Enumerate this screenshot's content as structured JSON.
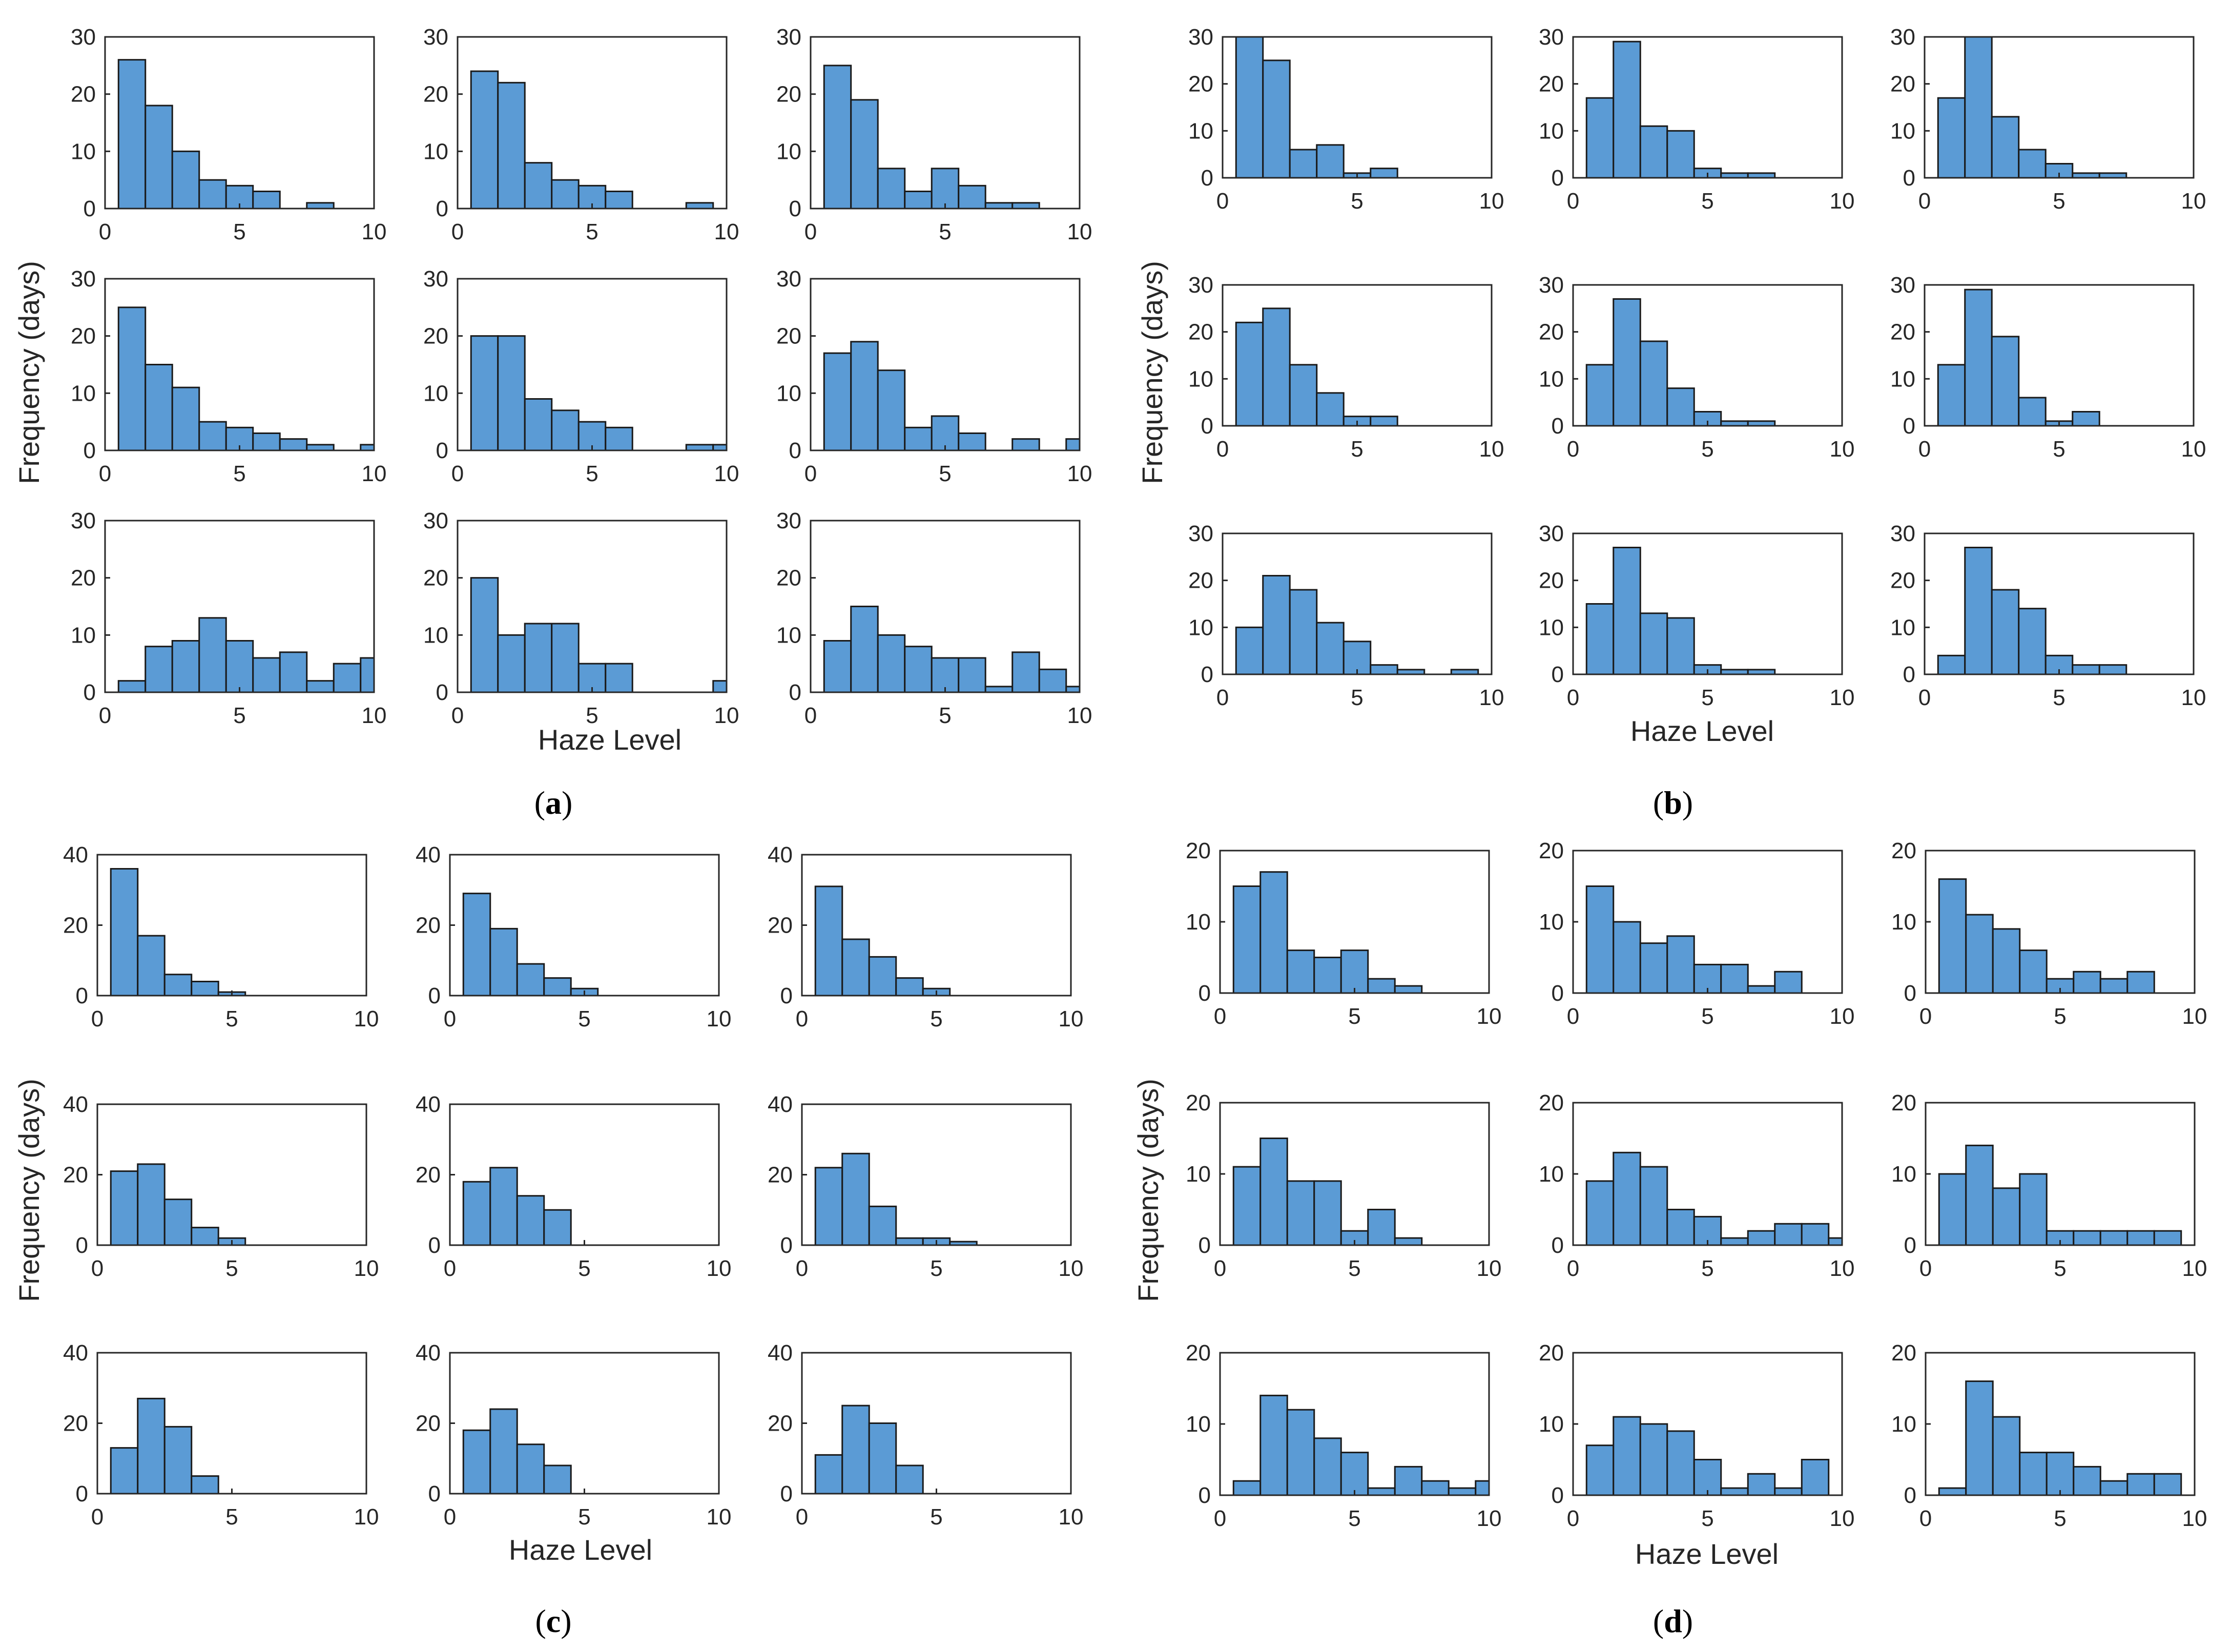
{
  "style": {
    "bar_fill": "#5b9bd5",
    "bar_edge": "#1a1a1a",
    "axis_color": "#262626"
  },
  "chart_data": [
    {
      "panel": "a",
      "caption": "(a)",
      "caption_letter": "a",
      "type": "bar",
      "title": "",
      "xlabel": "Haze Level",
      "ylabel": "Frequency (days)",
      "xlim": [
        0,
        10
      ],
      "ylim": [
        0,
        30
      ],
      "xticks": [
        "0",
        "5",
        "10"
      ],
      "yticks": [
        "0",
        "10",
        "20",
        "30"
      ],
      "bin_width": 1,
      "bin_start": 0.5,
      "subplots": [
        {
          "values": [
            26,
            18,
            10,
            5,
            4,
            3,
            0,
            1,
            0
          ]
        },
        {
          "values": [
            24,
            22,
            8,
            5,
            4,
            3,
            0,
            0,
            1
          ]
        },
        {
          "values": [
            25,
            19,
            7,
            3,
            7,
            4,
            1,
            1
          ]
        },
        {
          "values": [
            25,
            15,
            11,
            5,
            4,
            3,
            2,
            1,
            0,
            1
          ]
        },
        {
          "values": [
            20,
            20,
            9,
            7,
            5,
            4,
            0,
            0,
            1,
            1
          ]
        },
        {
          "values": [
            17,
            19,
            14,
            4,
            6,
            3,
            0,
            2,
            0,
            2
          ]
        },
        {
          "values": [
            2,
            8,
            9,
            13,
            9,
            6,
            7,
            2,
            5,
            6
          ]
        },
        {
          "values": [
            20,
            10,
            12,
            12,
            5,
            5,
            0,
            0,
            0,
            2
          ]
        },
        {
          "values": [
            9,
            15,
            10,
            8,
            6,
            6,
            1,
            7,
            4,
            1
          ]
        }
      ]
    },
    {
      "panel": "b",
      "caption": "(b)",
      "caption_letter": "b",
      "type": "bar",
      "title": "",
      "xlabel": "Haze Level",
      "ylabel": "Frequency (days)",
      "xlim": [
        0,
        10
      ],
      "ylim": [
        0,
        30
      ],
      "xticks": [
        "0",
        "5",
        "10"
      ],
      "yticks": [
        "0",
        "10",
        "20",
        "30"
      ],
      "bin_width": 1,
      "bin_start": 0.5,
      "subplots": [
        {
          "values": [
            30,
            25,
            6,
            7,
            1,
            2
          ]
        },
        {
          "values": [
            17,
            29,
            11,
            10,
            2,
            1,
            1
          ]
        },
        {
          "values": [
            17,
            30,
            13,
            6,
            3,
            1,
            1
          ]
        },
        {
          "values": [
            22,
            25,
            13,
            7,
            2,
            2
          ]
        },
        {
          "values": [
            13,
            27,
            18,
            8,
            3,
            1,
            1
          ]
        },
        {
          "values": [
            13,
            29,
            19,
            6,
            1,
            3
          ]
        },
        {
          "values": [
            10,
            21,
            18,
            11,
            7,
            2,
            1,
            0,
            1
          ]
        },
        {
          "values": [
            15,
            27,
            13,
            12,
            2,
            1,
            1
          ]
        },
        {
          "values": [
            4,
            27,
            18,
            14,
            4,
            2,
            2
          ]
        }
      ]
    },
    {
      "panel": "c",
      "caption": "(c)",
      "caption_letter": "c",
      "type": "bar",
      "title": "",
      "xlabel": "Haze Level",
      "ylabel": "Frequency (days)",
      "xlim": [
        0,
        10
      ],
      "ylim": [
        0,
        40
      ],
      "xticks": [
        "0",
        "5",
        "10"
      ],
      "yticks": [
        "0",
        "20",
        "40"
      ],
      "bin_width": 1,
      "bin_start": 0.5,
      "subplots": [
        {
          "values": [
            36,
            17,
            6,
            4,
            1
          ]
        },
        {
          "values": [
            29,
            19,
            9,
            5,
            2
          ]
        },
        {
          "values": [
            31,
            16,
            11,
            5,
            2
          ]
        },
        {
          "values": [
            21,
            23,
            13,
            5,
            2
          ]
        },
        {
          "values": [
            18,
            22,
            14,
            10
          ]
        },
        {
          "values": [
            22,
            26,
            11,
            2,
            2,
            1
          ]
        },
        {
          "values": [
            13,
            27,
            19,
            5
          ]
        },
        {
          "values": [
            18,
            24,
            14,
            8
          ]
        },
        {
          "values": [
            11,
            25,
            20,
            8
          ]
        }
      ]
    },
    {
      "panel": "d",
      "caption": "(d)",
      "caption_letter": "d",
      "type": "bar",
      "title": "",
      "xlabel": "Haze Level",
      "ylabel": "Frequency (days)",
      "xlim": [
        0,
        10
      ],
      "ylim": [
        0,
        20
      ],
      "xticks": [
        "0",
        "5",
        "10"
      ],
      "yticks": [
        "0",
        "10",
        "20"
      ],
      "bin_width": 1,
      "bin_start": 0.5,
      "subplots": [
        {
          "values": [
            15,
            17,
            6,
            5,
            6,
            2,
            1
          ]
        },
        {
          "values": [
            15,
            10,
            7,
            8,
            4,
            4,
            1,
            3
          ]
        },
        {
          "values": [
            16,
            11,
            9,
            6,
            2,
            3,
            2,
            3
          ]
        },
        {
          "values": [
            11,
            15,
            9,
            9,
            2,
            5,
            1
          ]
        },
        {
          "values": [
            9,
            13,
            11,
            5,
            4,
            1,
            2,
            3,
            3,
            1
          ]
        },
        {
          "values": [
            10,
            14,
            8,
            10,
            2,
            2,
            2,
            2,
            2
          ]
        },
        {
          "values": [
            2,
            14,
            12,
            8,
            6,
            1,
            4,
            2,
            1,
            2
          ]
        },
        {
          "values": [
            7,
            11,
            10,
            9,
            5,
            1,
            3,
            1,
            5
          ]
        },
        {
          "values": [
            1,
            16,
            11,
            6,
            6,
            4,
            2,
            3,
            3
          ]
        }
      ]
    }
  ]
}
